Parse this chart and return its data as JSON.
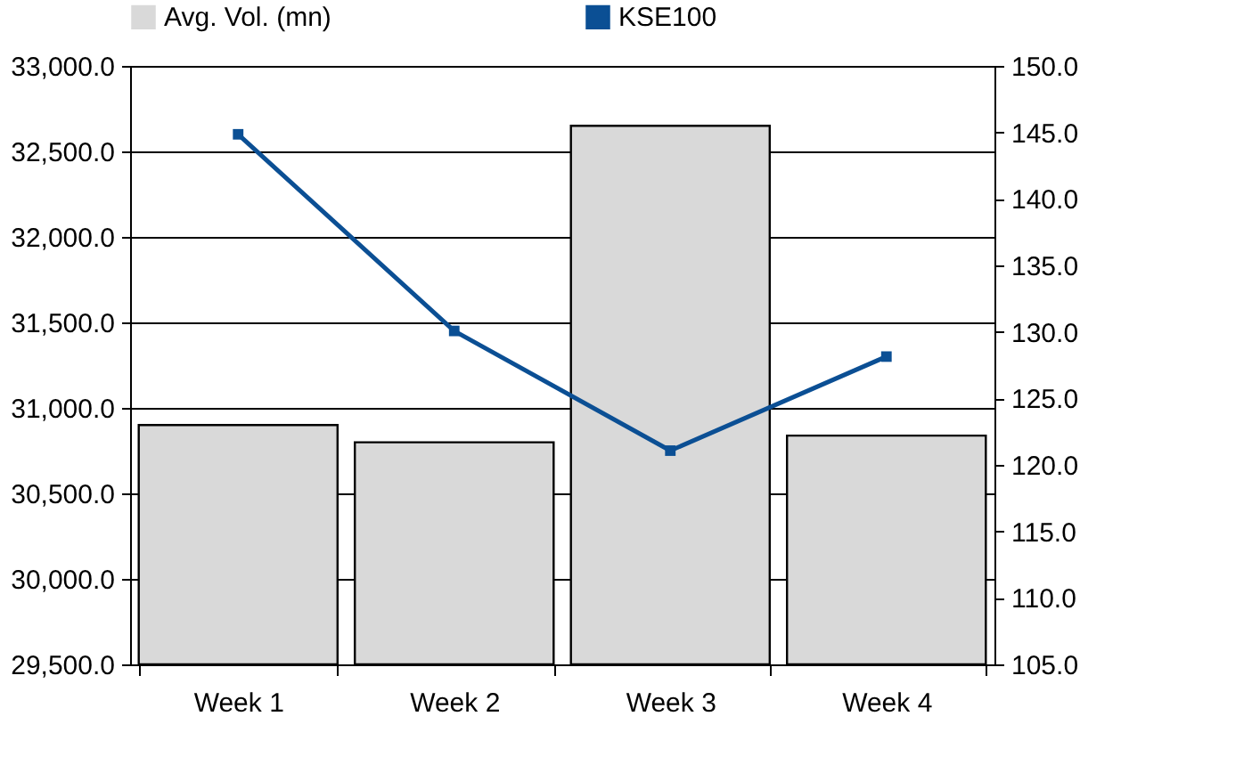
{
  "chart_data": {
    "type": "bar",
    "categories": [
      "Week 1",
      "Week 2",
      "Week 3",
      "Week 4"
    ],
    "series": [
      {
        "name": "Avg. Vol. (mn)",
        "axis": "y2",
        "color": "#d9d9d9",
        "values": [
          123.0,
          121.7,
          145.5,
          122.2
        ]
      },
      {
        "name": "KSE100",
        "type": "line",
        "axis": "y",
        "color": "#0b4f94",
        "marker": "square",
        "values": [
          32600,
          31450,
          30750,
          31300
        ]
      }
    ],
    "ylim": [
      29500,
      33000
    ],
    "yticks": [
      {
        "value": 29500,
        "label": "29,500.0"
      },
      {
        "value": 30000,
        "label": "30,000.0"
      },
      {
        "value": 30500,
        "label": "30,500.0"
      },
      {
        "value": 31000,
        "label": "31,000.0"
      },
      {
        "value": 31500,
        "label": "31,500.0"
      },
      {
        "value": 32000,
        "label": "32,000.0"
      },
      {
        "value": 32500,
        "label": "32,500.0"
      },
      {
        "value": 33000,
        "label": "33,000.0"
      }
    ],
    "y2lim": [
      105,
      150
    ],
    "y2ticks": [
      {
        "value": 105,
        "label": "105.0"
      },
      {
        "value": 110,
        "label": "110.0"
      },
      {
        "value": 115,
        "label": "115.0"
      },
      {
        "value": 120,
        "label": "120.0"
      },
      {
        "value": 125,
        "label": "125.0"
      },
      {
        "value": 130,
        "label": "130.0"
      },
      {
        "value": 135,
        "label": "135.0"
      },
      {
        "value": 140,
        "label": "140.0"
      },
      {
        "value": 145,
        "label": "145.0"
      },
      {
        "value": 150,
        "label": "150.0"
      }
    ],
    "grid": "y",
    "legend": "top"
  }
}
